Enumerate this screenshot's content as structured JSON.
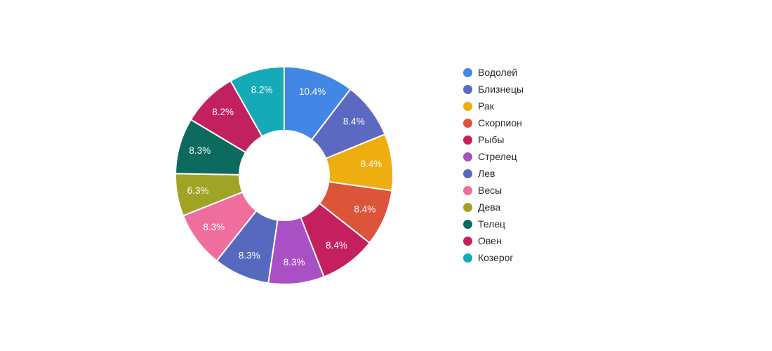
{
  "chart_data": {
    "type": "pie",
    "hole": 0.41,
    "direction": "clockwise",
    "start_angle_deg": 0,
    "title": "",
    "legend_position": "right",
    "background": "#ffffff",
    "slice_label_color": "#ffffff",
    "legend_text_color": "#2a2a2a",
    "labels": [
      "Водолей",
      "Близнецы",
      "Рак",
      "Скорпион",
      "Рыбы",
      "Стрелец",
      "Лев",
      "Весы",
      "Дева",
      "Телец",
      "Овен",
      "Козерог"
    ],
    "values": [
      10.4,
      8.4,
      8.4,
      8.4,
      8.4,
      8.3,
      8.3,
      8.3,
      6.3,
      8.3,
      8.2,
      8.2
    ],
    "slice_text": [
      "10.4%",
      "8.4%",
      "8.4%",
      "8.4%",
      "8.4%",
      "8.3%",
      "8.3%",
      "8.3%",
      "6.3%",
      "8.3%",
      "8.2%",
      "8.2%"
    ],
    "colors": [
      "#4286e6",
      "#5c69c0",
      "#eeae10",
      "#dc5439",
      "#c4205f",
      "#a950c4",
      "#5769be",
      "#ef6e9d",
      "#a1a327",
      "#0c6a5f",
      "#c2215f",
      "#15aab8"
    ]
  }
}
